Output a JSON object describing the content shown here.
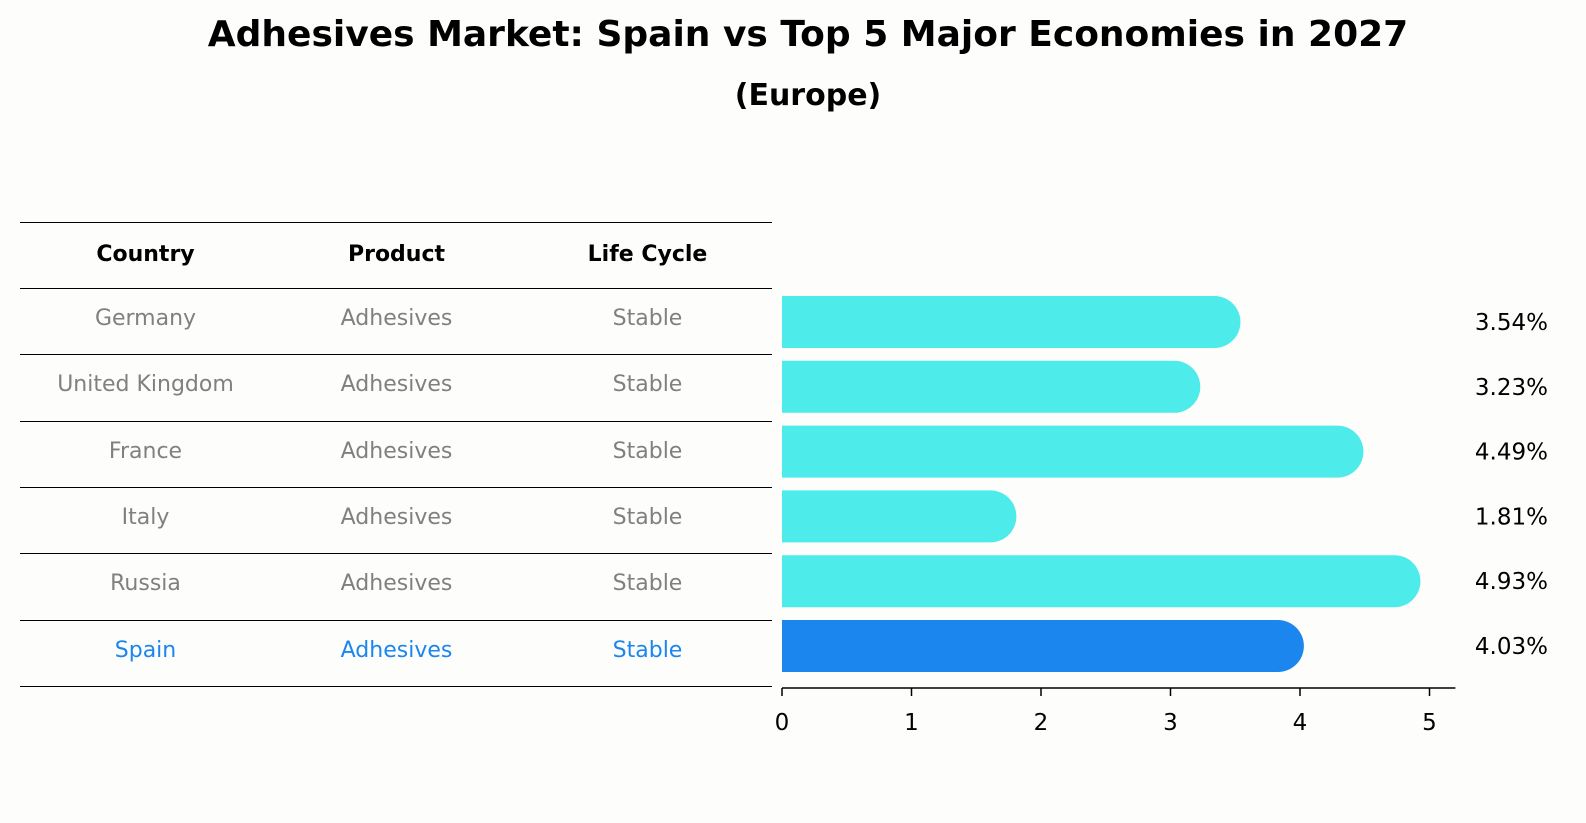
{
  "title": "Adhesives Market: Spain vs Top 5 Major Economies in 2027",
  "subtitle": "(Europe)",
  "table": {
    "headers": [
      "Country",
      "Product",
      "Life Cycle"
    ],
    "rows": [
      [
        "Germany",
        "Adhesives",
        "Stable"
      ],
      [
        "United Kingdom",
        "Adhesives",
        "Stable"
      ],
      [
        "France",
        "Adhesives",
        "Stable"
      ],
      [
        "Italy",
        "Adhesives",
        "Stable"
      ],
      [
        "Russia",
        "Adhesives",
        "Stable"
      ],
      [
        "Spain",
        "Adhesives",
        "Stable"
      ]
    ],
    "highlight_row": 5
  },
  "colors": {
    "bar": "#4debe9",
    "highlight": "#1a86ee",
    "muted_text": "#808080"
  },
  "chart_data": {
    "type": "bar",
    "orientation": "horizontal",
    "categories": [
      "Germany",
      "United Kingdom",
      "France",
      "Italy",
      "Russia",
      "Spain"
    ],
    "values": [
      3.54,
      3.23,
      4.49,
      1.81,
      4.93,
      4.03
    ],
    "value_labels": [
      "3.54%",
      "3.23%",
      "4.49%",
      "1.81%",
      "4.93%",
      "4.03%"
    ],
    "xlim": [
      0,
      5.2
    ],
    "xticks": [
      0,
      1,
      2,
      3,
      4,
      5
    ],
    "grid": false,
    "highlight_index": 5
  }
}
